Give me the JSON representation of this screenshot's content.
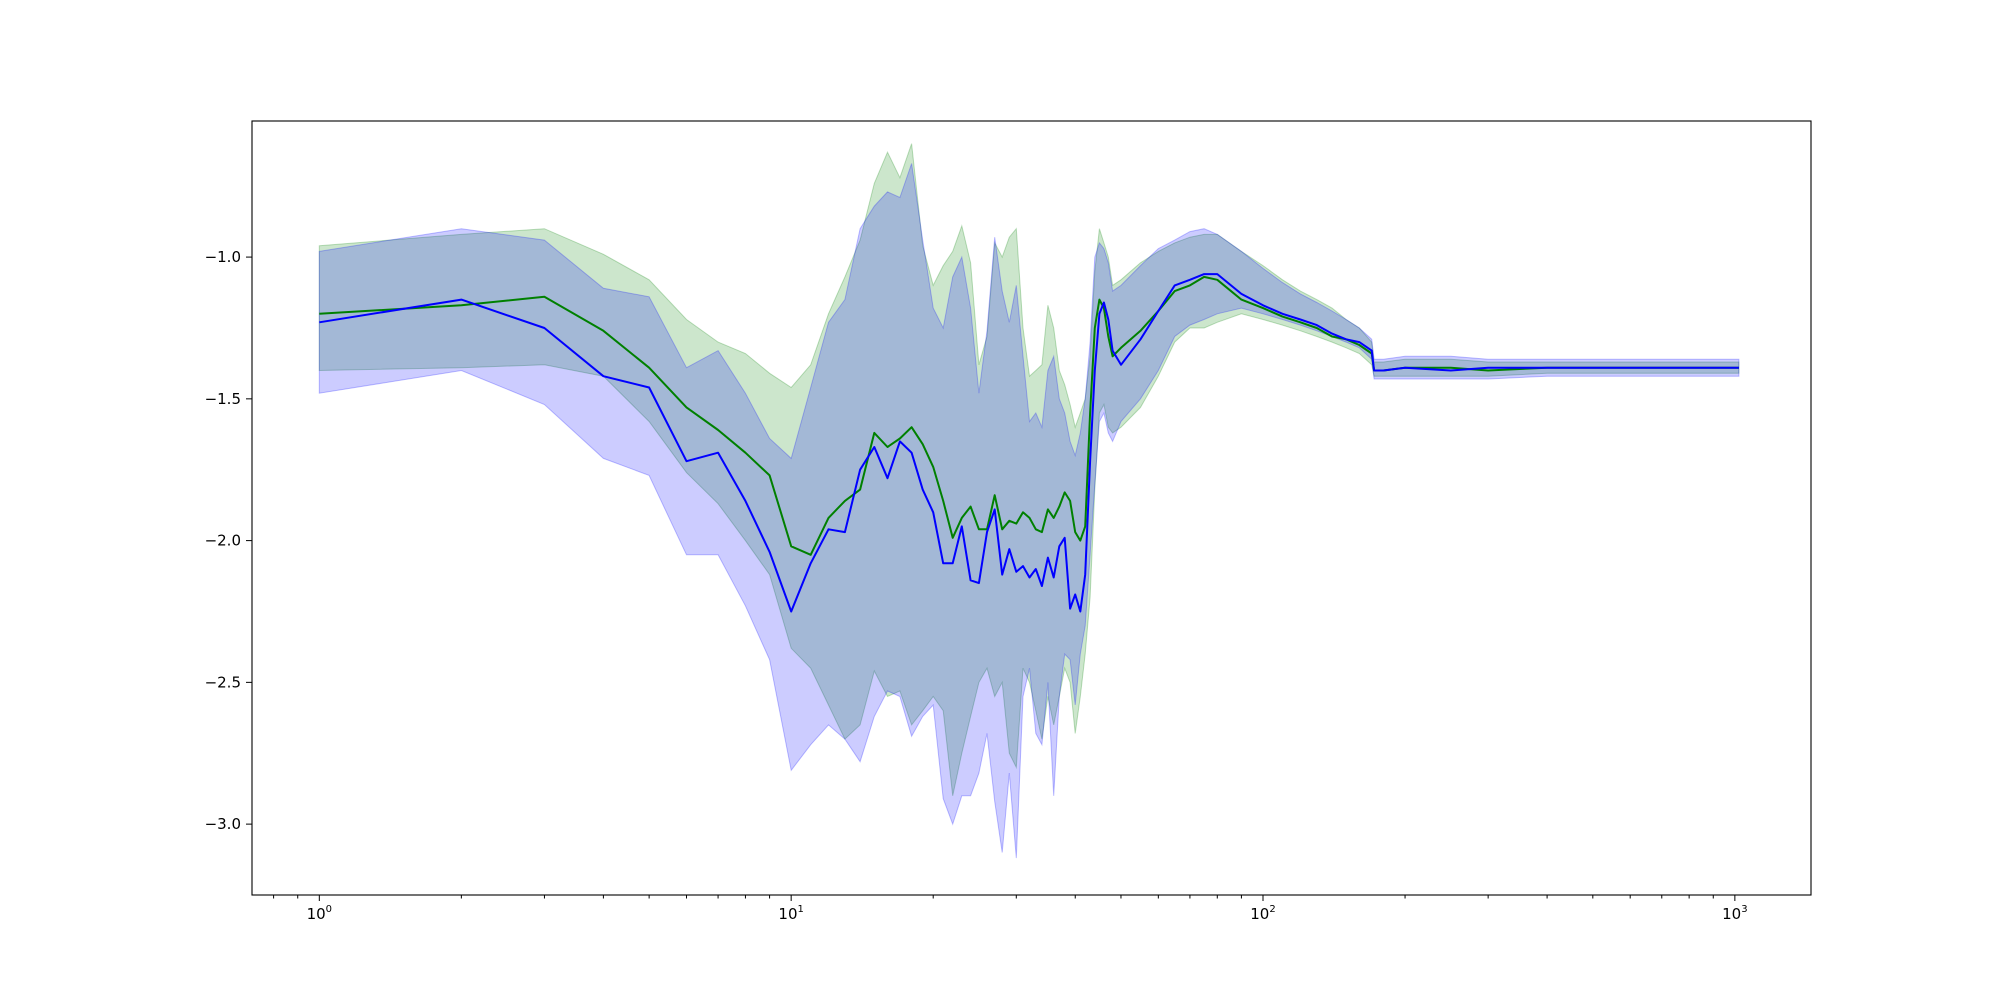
{
  "chart_data": {
    "type": "line",
    "title": "",
    "xlabel": "",
    "ylabel": "",
    "xscale": "log",
    "xlim": [
      0.72,
      1450
    ],
    "ylim": [
      -3.25,
      -0.52
    ],
    "grid": false,
    "yticks": [
      {
        "value": -3.0,
        "label": "−3.0"
      },
      {
        "value": -2.5,
        "label": "−2.5"
      },
      {
        "value": -2.0,
        "label": "−2.0"
      },
      {
        "value": -1.5,
        "label": "−1.5"
      },
      {
        "value": -1.0,
        "label": "−1.0"
      }
    ],
    "xticks": [
      {
        "value": 1,
        "base": "10",
        "exp": "0"
      },
      {
        "value": 10,
        "base": "10",
        "exp": "1"
      },
      {
        "value": 100,
        "base": "10",
        "exp": "2"
      },
      {
        "value": 1000,
        "base": "10",
        "exp": "3"
      }
    ],
    "series": [
      {
        "color": "#008000",
        "band_color": "#008000",
        "band_opacity": 0.2,
        "x": [
          1,
          2,
          3,
          4,
          5,
          6,
          7,
          8,
          9,
          10,
          11,
          12,
          13,
          14,
          15,
          16,
          17,
          18,
          19,
          20,
          21,
          22,
          23,
          24,
          25,
          26,
          27,
          28,
          29,
          30,
          31,
          32,
          33,
          34,
          35,
          36,
          37,
          38,
          39,
          40,
          41,
          42,
          43,
          44,
          45,
          46,
          47,
          48,
          50,
          55,
          60,
          65,
          70,
          75,
          80,
          90,
          100,
          110,
          120,
          130,
          140,
          150,
          160,
          170,
          172,
          180,
          200,
          250,
          300,
          400,
          500,
          700,
          1000,
          1020
        ],
        "y": [
          -1.2,
          -1.17,
          -1.14,
          -1.26,
          -1.39,
          -1.53,
          -1.61,
          -1.69,
          -1.77,
          -2.02,
          -2.05,
          -1.92,
          -1.86,
          -1.82,
          -1.62,
          -1.67,
          -1.64,
          -1.6,
          -1.66,
          -1.74,
          -1.86,
          -1.99,
          -1.92,
          -1.88,
          -1.96,
          -1.96,
          -1.84,
          -1.96,
          -1.93,
          -1.94,
          -1.9,
          -1.92,
          -1.96,
          -1.97,
          -1.89,
          -1.92,
          -1.88,
          -1.83,
          -1.86,
          -1.97,
          -2.0,
          -1.95,
          -1.55,
          -1.25,
          -1.15,
          -1.18,
          -1.28,
          -1.35,
          -1.32,
          -1.26,
          -1.19,
          -1.12,
          -1.1,
          -1.07,
          -1.08,
          -1.15,
          -1.18,
          -1.21,
          -1.23,
          -1.25,
          -1.28,
          -1.29,
          -1.31,
          -1.34,
          -1.4,
          -1.4,
          -1.39,
          -1.39,
          -1.4,
          -1.39,
          -1.39,
          -1.39,
          -1.39,
          -1.39
        ],
        "lower": [
          -1.4,
          -1.39,
          -1.38,
          -1.42,
          -1.58,
          -1.76,
          -1.87,
          -2.0,
          -2.12,
          -2.38,
          -2.45,
          -2.58,
          -2.7,
          -2.65,
          -2.46,
          -2.55,
          -2.53,
          -2.65,
          -2.6,
          -2.55,
          -2.6,
          -2.9,
          -2.75,
          -2.62,
          -2.5,
          -2.45,
          -2.55,
          -2.5,
          -2.75,
          -2.8,
          -2.45,
          -2.5,
          -2.6,
          -2.7,
          -2.55,
          -2.65,
          -2.55,
          -2.45,
          -2.5,
          -2.68,
          -2.55,
          -2.4,
          -2.2,
          -1.82,
          -1.55,
          -1.52,
          -1.6,
          -1.62,
          -1.6,
          -1.53,
          -1.42,
          -1.3,
          -1.25,
          -1.25,
          -1.23,
          -1.2,
          -1.22,
          -1.24,
          -1.26,
          -1.28,
          -1.3,
          -1.32,
          -1.34,
          -1.38,
          -1.42,
          -1.42,
          -1.42,
          -1.42,
          -1.42,
          -1.41,
          -1.41,
          -1.41,
          -1.41,
          -1.41
        ],
        "upper": [
          -0.96,
          -0.92,
          -0.9,
          -0.99,
          -1.08,
          -1.22,
          -1.3,
          -1.34,
          -1.41,
          -1.46,
          -1.38,
          -1.2,
          -1.07,
          -0.94,
          -0.74,
          -0.63,
          -0.72,
          -0.6,
          -0.96,
          -1.1,
          -1.03,
          -0.98,
          -0.89,
          -1.02,
          -1.38,
          -1.28,
          -0.95,
          -1.0,
          -0.93,
          -0.9,
          -1.25,
          -1.42,
          -1.4,
          -1.38,
          -1.17,
          -1.25,
          -1.4,
          -1.45,
          -1.52,
          -1.6,
          -1.55,
          -1.5,
          -1.35,
          -1.05,
          -0.9,
          -0.95,
          -1.0,
          -1.1,
          -1.08,
          -1.02,
          -0.98,
          -0.95,
          -0.93,
          -0.92,
          -0.92,
          -0.98,
          -1.03,
          -1.08,
          -1.12,
          -1.15,
          -1.18,
          -1.22,
          -1.25,
          -1.3,
          -1.37,
          -1.37,
          -1.36,
          -1.36,
          -1.37,
          -1.37,
          -1.37,
          -1.37,
          -1.37,
          -1.37
        ]
      },
      {
        "color": "#0000ff",
        "band_color": "#0000ff",
        "band_opacity": 0.2,
        "x": [
          1,
          2,
          3,
          4,
          5,
          6,
          7,
          8,
          9,
          10,
          11,
          12,
          13,
          14,
          15,
          16,
          17,
          18,
          19,
          20,
          21,
          22,
          23,
          24,
          25,
          26,
          27,
          28,
          29,
          30,
          31,
          32,
          33,
          34,
          35,
          36,
          37,
          38,
          39,
          40,
          41,
          42,
          43,
          44,
          45,
          46,
          47,
          48,
          50,
          55,
          60,
          65,
          70,
          75,
          80,
          90,
          100,
          110,
          120,
          130,
          140,
          150,
          160,
          170,
          172,
          180,
          200,
          250,
          300,
          400,
          500,
          700,
          1000,
          1020
        ],
        "y": [
          -1.23,
          -1.15,
          -1.25,
          -1.42,
          -1.46,
          -1.72,
          -1.69,
          -1.86,
          -2.04,
          -2.25,
          -2.08,
          -1.96,
          -1.97,
          -1.75,
          -1.67,
          -1.78,
          -1.65,
          -1.69,
          -1.82,
          -1.9,
          -2.08,
          -2.08,
          -1.95,
          -2.14,
          -2.15,
          -1.97,
          -1.89,
          -2.12,
          -2.03,
          -2.11,
          -2.09,
          -2.13,
          -2.1,
          -2.16,
          -2.06,
          -2.13,
          -2.02,
          -1.99,
          -2.24,
          -2.19,
          -2.25,
          -2.12,
          -1.72,
          -1.4,
          -1.2,
          -1.16,
          -1.22,
          -1.33,
          -1.38,
          -1.29,
          -1.19,
          -1.1,
          -1.08,
          -1.06,
          -1.06,
          -1.13,
          -1.17,
          -1.2,
          -1.22,
          -1.24,
          -1.27,
          -1.29,
          -1.3,
          -1.33,
          -1.4,
          -1.4,
          -1.39,
          -1.4,
          -1.39,
          -1.39,
          -1.39,
          -1.39,
          -1.39,
          -1.39
        ],
        "lower": [
          -1.48,
          -1.4,
          -1.52,
          -1.71,
          -1.77,
          -2.05,
          -2.05,
          -2.23,
          -2.42,
          -2.81,
          -2.72,
          -2.65,
          -2.7,
          -2.78,
          -2.62,
          -2.53,
          -2.55,
          -2.69,
          -2.62,
          -2.58,
          -2.91,
          -3.0,
          -2.9,
          -2.9,
          -2.82,
          -2.68,
          -2.92,
          -3.1,
          -2.82,
          -3.12,
          -2.55,
          -2.45,
          -2.68,
          -2.72,
          -2.5,
          -2.9,
          -2.55,
          -2.4,
          -2.42,
          -2.58,
          -2.4,
          -2.3,
          -2.05,
          -1.8,
          -1.58,
          -1.55,
          -1.62,
          -1.65,
          -1.58,
          -1.5,
          -1.4,
          -1.28,
          -1.24,
          -1.22,
          -1.2,
          -1.18,
          -1.2,
          -1.22,
          -1.24,
          -1.26,
          -1.28,
          -1.3,
          -1.32,
          -1.36,
          -1.43,
          -1.43,
          -1.43,
          -1.43,
          -1.43,
          -1.42,
          -1.42,
          -1.42,
          -1.42,
          -1.42
        ],
        "upper": [
          -0.98,
          -0.9,
          -0.94,
          -1.11,
          -1.14,
          -1.39,
          -1.33,
          -1.48,
          -1.64,
          -1.71,
          -1.46,
          -1.23,
          -1.15,
          -0.9,
          -0.82,
          -0.77,
          -0.79,
          -0.67,
          -0.94,
          -1.18,
          -1.25,
          -1.07,
          -1.0,
          -1.18,
          -1.48,
          -1.26,
          -0.93,
          -1.12,
          -1.23,
          -1.1,
          -1.35,
          -1.58,
          -1.55,
          -1.6,
          -1.4,
          -1.35,
          -1.5,
          -1.55,
          -1.65,
          -1.7,
          -1.62,
          -1.5,
          -1.3,
          -1.0,
          -0.95,
          -0.97,
          -1.02,
          -1.12,
          -1.1,
          -1.03,
          -0.97,
          -0.94,
          -0.91,
          -0.9,
          -0.92,
          -0.98,
          -1.04,
          -1.09,
          -1.13,
          -1.16,
          -1.19,
          -1.22,
          -1.25,
          -1.29,
          -1.36,
          -1.36,
          -1.35,
          -1.35,
          -1.36,
          -1.36,
          -1.36,
          -1.36,
          -1.36,
          -1.36
        ]
      }
    ]
  }
}
